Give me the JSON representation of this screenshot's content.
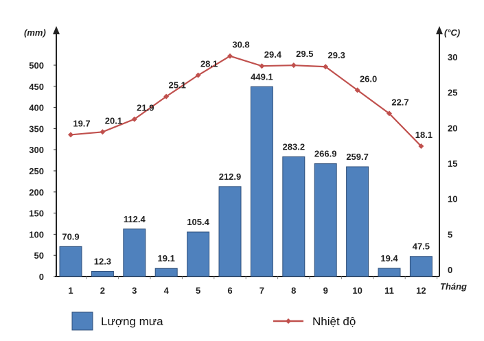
{
  "chart_data": {
    "type": "bar+line",
    "categories": [
      "1",
      "2",
      "3",
      "4",
      "5",
      "6",
      "7",
      "8",
      "9",
      "10",
      "11",
      "12"
    ],
    "series": [
      {
        "name": "Lượng mưa",
        "type": "bar",
        "axis": "left",
        "color": "#4f81bd",
        "values": [
          70.9,
          12.3,
          112.4,
          19.1,
          105.4,
          212.9,
          449.1,
          283.2,
          266.9,
          259.7,
          19.4,
          47.5
        ],
        "labels": [
          "70.9",
          "12.3",
          "112.4",
          "19.1",
          "105.4",
          "212.9",
          "449.1",
          "283.2",
          "266.9",
          "259.7",
          "19.4",
          "47.5"
        ]
      },
      {
        "name": "Nhiệt độ",
        "type": "line",
        "axis": "right",
        "color": "#c0504d",
        "values": [
          19.7,
          20.1,
          21.9,
          25.1,
          28.1,
          30.8,
          29.4,
          29.5,
          29.3,
          26.0,
          22.7,
          18.1
        ],
        "labels": [
          "19.7",
          "20.1",
          "21.9",
          "25.1",
          "28.1",
          "30.8",
          "29.4",
          "29.5",
          "29.3",
          "26.0",
          "22.7",
          "18.1"
        ]
      }
    ],
    "xlabel": "Tháng",
    "ylabel_left": "(mm)",
    "ylabel_right": "(°C)",
    "ylim_left": [
      0,
      500
    ],
    "ylim_right": [
      0,
      30
    ],
    "yticks_left": [
      "0",
      "50",
      "100",
      "150",
      "200",
      "250",
      "300",
      "350",
      "400",
      "450",
      "500"
    ],
    "yticks_right": [
      "0",
      "5",
      "10",
      "15",
      "20",
      "25",
      "30"
    ],
    "grid": false,
    "legend_position": "bottom"
  }
}
